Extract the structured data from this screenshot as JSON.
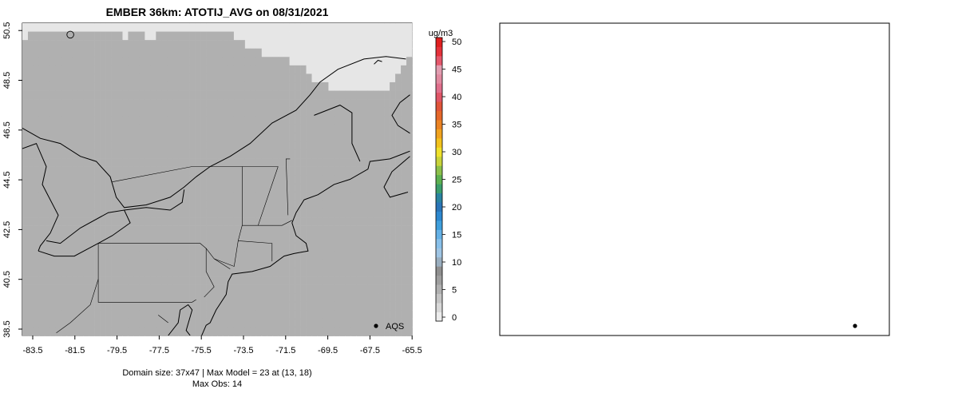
{
  "chart_data": [
    {
      "type": "scatter",
      "title": "EMBER 36km: ATOTIJ_AVG on 08/31/2021",
      "xticks": [
        "-83.5",
        "-81.5",
        "-79.5",
        "-77.5",
        "-75.5",
        "-73.5",
        "-71.5",
        "-69.5",
        "-67.5",
        "-65.5"
      ],
      "yticks": [
        "38.5",
        "40.5",
        "42.5",
        "44.5",
        "46.5",
        "48.5",
        "50.5"
      ],
      "xlim": [
        -84.3,
        -64.8
      ],
      "ylim": [
        38.4,
        50.6
      ],
      "legend": {
        "label": "AQS",
        "position": "bottom-right"
      },
      "colorbar": {
        "unit": "ug/m3",
        "ticks": [
          "0",
          "5",
          "10",
          "15",
          "20",
          "25",
          "30",
          "35",
          "40",
          "45",
          "50"
        ],
        "range": [
          0,
          52
        ],
        "colors": [
          "#ececec",
          "#d8d8d8",
          "#c4c4c4",
          "#b0b0b0",
          "#9e9e9e",
          "#8f8f8f",
          "#9aaebf",
          "#9fc5e4",
          "#88c0ea",
          "#64b1e6",
          "#3f9fdc",
          "#2d88cf",
          "#2a75b8",
          "#2a83a0",
          "#3b9d6c",
          "#5cb050",
          "#8cc04a",
          "#c8d33a",
          "#efe12b",
          "#f2c21d",
          "#f0a31f",
          "#eb8323",
          "#e5672a",
          "#e0543a",
          "#e05567",
          "#e06f8c",
          "#e18aa0",
          "#e29db0",
          "#e5576b",
          "#e5313a",
          "#e01f1f"
        ]
      },
      "field": {
        "grid": [
          "llllllllllllllllllllllllllllllllllllllllllllllllllllllllllllllllllllll",
          "lmmmmmmmmmmmmmmmmmlmmmllmmmmmmmmmmmmmmllllllllllllllllllllllllllllllll",
          "mmmmmmmmmmmmmmmmmmmmmmmmmmmmmmmmmmmmmmmmllllllllllllllllllllllllllllll",
          "mmmmmmmmmmmmmmmmmmmmmmmmmmmmmmmmmmmmmmmmmmmlllllllllllllllllllllllllll",
          "mmmmmmmmmmmmmmmmmmmmmmmmmmmmmmmmmmmmmmmmmmmmmmmmlllllllllllllllllllllm",
          "mmmmmmmmmmmmmmmmmmmmmmmmmmmmmmmmmmmmmmmmmmmmmmmmmmmlllllllllllllllllmm",
          "mmmmmmmmmmmmmmmmmmmmmmmmmmmmmmmmmmmmmmmmmmmmmmmmmmmmlllllllllllllllmmm",
          "mmmmmmmmmmmmmmmmmmmmmmmmmmmmmmmmmmmmmmmmmmmmmmmmmmmmmmmlllllllllllmmmm",
          "mmmmmmmmmmmmmmmmmmmmmmmmmmmmmmmmmmmmmmmmmmmmmmmmmmmmmmmmmmmmmmmmmmmmmm",
          "mmmmmmmmmmmmmmmmmmmmmmmmmmmmmmmmmmmmmmmmmmmmmmmmmmmmmmmmmmmmmmmmmmmmmm",
          "mmmmmmmmmmmmmmmmmmmmmmmmmmmmmmmmmmmmmmmmmmmmmmmmmmmmmmmmmmmmmmmmmmmmmm",
          "mmmmmmmmmmmmmmmmmmmmmmmmmmmmmmmmmmmmmmmmmmmmmmmmmmmmmmmmmmmmmmmmmmmmmm",
          "mmmmmmmmmmmmmmmmmmmmmmmmmmmmmmmmmmmmmmmmmmmmmmmmmmmmmmmmmmmmmmmmmmmmmm",
          "mmmmmmmmmmmmmmmmmmmmmmmmmmmmmmmmmmmmmmmmmmmmmmmmmmmmmmmmmmmmmmmmmmmmmm",
          "mmmmmmmmmmmmmmmmmmmmmmmmmmmmmmmmmmmmmmmmmmmmmmmmmmmmmmmmmmmmmmmmmmmmmm",
          "mmmmmmmmmmmmmmmmmmmmmmmmmmmmmmmmmmmmmmmmmmmmmmmmmmmmmmmmmmmmmmmmmmmmmm",
          "mmmmmmmmmmmmmmmmmmmmmmmmmmmmmmmmmmmmmmmmmmmmmmmmmmmmmmmmmmmmmmmmmmmmmm",
          "mmmmmmmmmmmmmmmmmmmmmmmmmmmmmmmmmmmmmmmmmmmmmmmmmmmmmmmmmmmmmmmmmmmmmm",
          "mmmmmmmmmmmmmmmmmmmmmmmmmmmmmmmmmmmmmmmmmmmmmmmmmmmmmmmmmmmmmmmmmmmmmm",
          "mmmmmmmmmmmmmmmmmmmmmmmmmmmmmmmmmmmmmmmmmmmmmmmmmmmmmmmmmmmmmmmmmmmmmm",
          "mmmmmmmmmmmmmmmmmmmmmmmmmmmmmmmmmmmmmmmmmmmmmmmmmmmmmmmmmmmmmmmmmmmmmm",
          "mmmmmmmmmmmmmmmmmmmmmmmmmmmmmmmmmmmmmmmmmmmmmmmmmmmmmmmmmmmmmmmmmmmmmm",
          "mmmmmmmmmmmmmmmmmmmmmmmmmmmmmmmmmmmmmmmmmmmmmmmmmmmmmmmmmmmmmmmmmmmmmm",
          "mmmmmmmmmmmmmmmmmmmmmmmmmmmmmmmmmmmmmmmmmmmmmmmmmmmmmmmmmmmmmmmmmmmmmm",
          "mmmmmmmmmmmmmmmmmmmmmmmmmmmmmmmmmmmmmmmmmmmmmmmmmmmmmmmmmmmmmmmmmmmmmm",
          "mmmmmmmmmmmmmmmmmmmmmmmmmmmmmmmmmmmmmmmmmmmmmmmmmmmmmmmmmmmmmmmmmmmmmm",
          "mmmmmmmmmmmmmmmmmmmmmmmmmmmmmmmmmmmmmmmmmmmmmmmmmmmmmmmmmmmmmmmmmmmmmm",
          "mmmmmmmmmmmmmmmmmmmmmmmmmmmmmmmmmmmmmmmmmmmmmmmmmmmmmmmmmmmmmmmmmmmmmm",
          "mmmmmmmmmmmmmmmmmmmmmmmmmmmmmmmmmmmmmmmmmmmmmmmmmmmmmmmmmmmmmmmmmmmmmm",
          "mmmmmmmmmmmmmmmmmmmmmmmmmmmmmmmmmmmmmmmmmmmmmmmmmmmmmmmmmmmmmmmmmmmmmm",
          "mmmmmmmmmmmmmmmmmmmmmmmmmmmmmmmmmmmmmmmmmmmmmmmmmmmmmmmmmmmmmmmmmmmmmm",
          "mmmmmmmmmmmmmmmmmmmmmmmmmmmmmmmmmmmmmmmmmmmmmmmmmmmmmmmmmmmmmmmmmmmmmm",
          "mmmmmmmmmmmmmmmmmmmmmmmmmmmmmmmmmmmmmmmmmmmmmmmmmmmmmmmmmmmmmmmmmmmmmm",
          "mmmmmmmmmmmmmmmmmmmmmmmmmmmmmmmmmmmmmmmmmmmmmmmmmmmmmmmmmmmmmmmmmmmmmm",
          "mmmmmmmmmmmmmmmmmmmmmmmmmmmmmmmmmmmmmmmmmmmmmmmmmmmmmmmmmmmmmmmmmmmmmm",
          "mmmmmmmmmmmmmmmmmmmmmmmmmmmmmmmmmmmmmmmmmmmmmmmmmmmmmmmmmmmmmmmmmmmmmm",
          "mmmmmmmmmmmmmmmmmmmmmmmmmmmmmmmmmmmmmmmmmmmmmmmmmmmmmmmmmmmmmmmmmmmmmm"
        ]
      },
      "footer_lines": [
        "Domain size: 37x47 | Max Model = 23 at (13, 18)",
        "Max Obs: 14"
      ],
      "points": [
        {
          "lon": -81.9,
          "lat": 50.15,
          "v": 6
        }
      ]
    }
  ]
}
